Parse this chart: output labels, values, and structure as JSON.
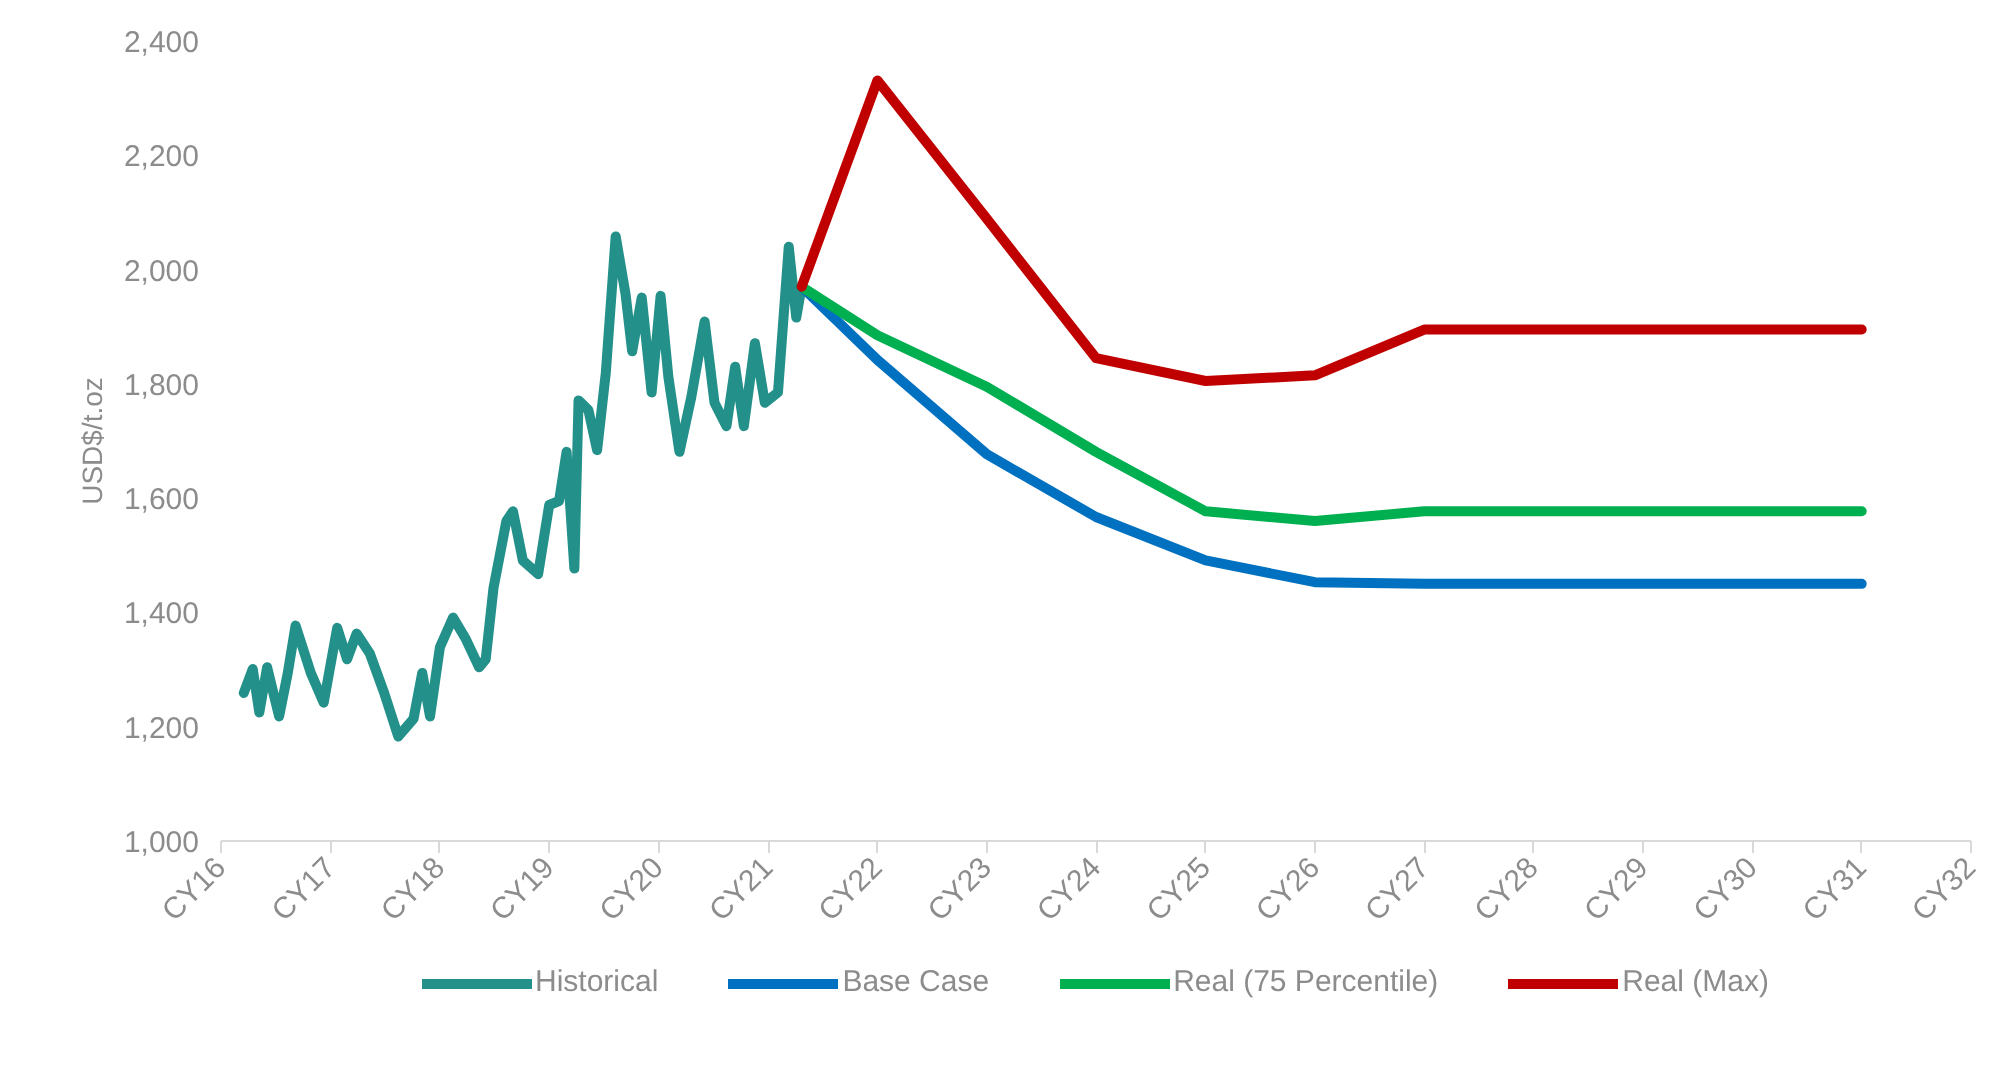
{
  "chart_data": {
    "type": "line",
    "ylabel": "USD$/t.oz",
    "xlim": [
      "2016",
      "2032"
    ],
    "ylim": [
      1000,
      2400
    ],
    "xticks": [
      {
        "value": "2016",
        "label": "CY16"
      },
      {
        "value": "2017",
        "label": "CY17"
      },
      {
        "value": "2018",
        "label": "CY18"
      },
      {
        "value": "2019",
        "label": "CY19"
      },
      {
        "value": "2020",
        "label": "CY20"
      },
      {
        "value": "2021",
        "label": "CY21"
      },
      {
        "value": "2022",
        "label": "CY22"
      },
      {
        "value": "2023",
        "label": "CY23"
      },
      {
        "value": "2024",
        "label": "CY24"
      },
      {
        "value": "2025",
        "label": "CY25"
      },
      {
        "value": "2026",
        "label": "CY26"
      },
      {
        "value": "2027",
        "label": "CY27"
      },
      {
        "value": "2028",
        "label": "CY28"
      },
      {
        "value": "2029",
        "label": "CY29"
      },
      {
        "value": "2030",
        "label": "CY30"
      },
      {
        "value": "2031",
        "label": "CY31"
      },
      {
        "value": "2032",
        "label": "CY32"
      }
    ],
    "yticks": [
      {
        "value": 1000,
        "label": "1,000"
      },
      {
        "value": 1200,
        "label": "1,200"
      },
      {
        "value": 1400,
        "label": "1,400"
      },
      {
        "value": 1600,
        "label": "1,600"
      },
      {
        "value": 1800,
        "label": "1,800"
      },
      {
        "value": 2000,
        "label": "2,000"
      },
      {
        "value": 2200,
        "label": "2,200"
      },
      {
        "value": 2400,
        "label": "2,400"
      }
    ],
    "grid": false,
    "legend": "bottom",
    "marker": "none",
    "line_style": "solid",
    "series": [
      {
        "name": "Historical",
        "color": "#239089",
        "x": [
          "2016-03-17",
          "2016-04-16",
          "2016-05-08",
          "2016-06-03",
          "2016-07-13",
          "2016-08-11",
          "2016-09-06",
          "2016-10-27",
          "2016-12-09",
          "2017-01-23",
          "2017-02-25",
          "2017-03-29",
          "2017-05-12",
          "2017-06-29",
          "2017-08-15",
          "2017-10-05",
          "2017-11-03",
          "2017-11-29",
          "2018-01-01",
          "2018-02-14",
          "2018-03-29",
          "2018-05-12",
          "2018-06-03",
          "2018-06-29",
          "2018-08-11",
          "2018-09-02",
          "2018-10-05",
          "2018-11-25",
          "2019-01-01",
          "2019-02-03",
          "2019-02-28",
          "2019-03-26",
          "2019-04-09",
          "2019-05-12",
          "2019-06-10",
          "2019-07-09",
          "2019-08-11",
          "2019-09-13",
          "2019-10-05",
          "2019-11-06",
          "2019-12-09",
          "2020-01-08",
          "2020-02-03",
          "2020-03-11",
          "2020-04-20",
          "2020-06-03",
          "2020-07-06",
          "2020-08-15",
          "2020-09-13",
          "2020-10-12",
          "2020-11-18",
          "2020-12-21",
          "2021-02-03",
          "2021-03-11",
          "2021-04-05",
          "2021-04-23"
        ],
        "values": [
          1259,
          1301,
          1225,
          1304,
          1218,
          1294,
          1377,
          1294,
          1242,
          1373,
          1318,
          1363,
          1328,
          1259,
          1183,
          1214,
          1294,
          1218,
          1339,
          1391,
          1353,
          1304,
          1318,
          1443,
          1560,
          1577,
          1491,
          1467,
          1588,
          1595,
          1681,
          1477,
          1771,
          1754,
          1684,
          1819,
          2058,
          1957,
          1857,
          1951,
          1785,
          1954,
          1812,
          1681,
          1778,
          1909,
          1767,
          1726,
          1830,
          1726,
          1871,
          1767,
          1785,
          2040,
          1916,
          1970
        ]
      },
      {
        "name": "Base Case",
        "color": "#0070c0",
        "x": [
          "2021-04-23",
          "2022",
          "2023",
          "2024",
          "2025",
          "2026",
          "2027",
          "2028",
          "2029",
          "2030",
          "2031"
        ],
        "values": [
          1970,
          1842,
          1677,
          1567,
          1491,
          1453,
          1450,
          1450,
          1450,
          1450,
          1450
        ]
      },
      {
        "name": "Real (75 Percentile)",
        "color": "#00b050",
        "x": [
          "2021-04-23",
          "2022",
          "2023",
          "2024",
          "2025",
          "2026",
          "2027",
          "2028",
          "2029",
          "2030",
          "2031"
        ],
        "values": [
          1970,
          1885,
          1795,
          1681,
          1577,
          1560,
          1577,
          1577,
          1577,
          1577,
          1577
        ]
      },
      {
        "name": "Real (Max)",
        "color": "#c00000",
        "x": [
          "2021-04-23",
          "2022",
          "2023",
          "2024",
          "2025",
          "2026",
          "2027",
          "2028",
          "2029",
          "2030",
          "2031"
        ],
        "values": [
          1970,
          2331,
          2089,
          1845,
          1805,
          1815,
          1895,
          1895,
          1895,
          1895,
          1895
        ]
      }
    ]
  }
}
